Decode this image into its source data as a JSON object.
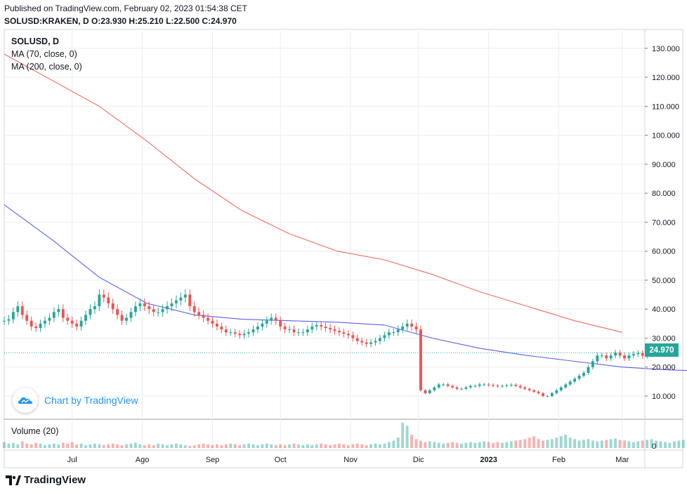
{
  "header": {
    "published": "Published on TradingView.com, February 02, 2023 01:54:38 CET",
    "ohlc": "SOLUSD:KRAKEN, D  O:23.930  H:25.210  L:22.500  C:24.970"
  },
  "legend": {
    "symbol": "SOLUSD, D",
    "ma1": "MA (70, close, 0)",
    "ma2": "MA (200, close, 0)",
    "volume": "Volume (20)"
  },
  "watermark": "Chart by TradingView",
  "footer_brand": "TradingView",
  "last_price_label": "24.970",
  "colors": {
    "up": "#26a69a",
    "down": "#ef5350",
    "ma70": "#5b5fe6",
    "ma200": "#f06b5f",
    "last_price": "#26a69a",
    "grid": "#e9edf2"
  },
  "chart_data": {
    "type": "candlestick",
    "y_ticks": [
      "130.000",
      "120.000",
      "110.000",
      "100.000",
      "90.000",
      "80.000",
      "70.000",
      "60.000",
      "50.000",
      "40.000",
      "30.000",
      "20.000",
      "10.000"
    ],
    "y_tick_values": [
      130,
      120,
      110,
      100,
      90,
      80,
      70,
      60,
      50,
      40,
      30,
      20,
      10
    ],
    "ylim": [
      2,
      136
    ],
    "volume_tick": "0",
    "x_ticks": [
      "Jul",
      "Ago",
      "Sep",
      "Oct",
      "Nov",
      "Dic",
      "2023",
      "Feb",
      "Mar"
    ],
    "x_tick_dates": [
      "2022-07-01",
      "2022-08-01",
      "2022-09-01",
      "2022-10-01",
      "2022-11-01",
      "2022-12-01",
      "2023-01-01",
      "2023-02-01",
      "2023-03-01"
    ],
    "x_range": [
      "2022-06-01",
      "2023-03-11"
    ],
    "last_price": 24.97,
    "close_series": {
      "start_date": "2022-06-01",
      "values": [
        36,
        36.5,
        39,
        41,
        38,
        36,
        34,
        33.5,
        35,
        36,
        37,
        39,
        40,
        37,
        36,
        35,
        34,
        36,
        38,
        40,
        41,
        45,
        44,
        42,
        40,
        38,
        36,
        37,
        39,
        41,
        42,
        41,
        40,
        39,
        39,
        40,
        41,
        42,
        43,
        44,
        45,
        41,
        39,
        38,
        37,
        36,
        35,
        34,
        33,
        32,
        32,
        31.5,
        31,
        31.5,
        32,
        33,
        34,
        35,
        36,
        37,
        36,
        34,
        33,
        33,
        32,
        32,
        32,
        33,
        34,
        34.5,
        34,
        33.5,
        33,
        32.5,
        32,
        31.5,
        31,
        30,
        29,
        28.5,
        28,
        28.5,
        29,
        30,
        31,
        32,
        32,
        33,
        34,
        35,
        34,
        33,
        12,
        11,
        12,
        13,
        14,
        14,
        13.5,
        13,
        12.5,
        12.5,
        13,
        13.5,
        13.5,
        14,
        14,
        13.8,
        13.6,
        13.4,
        13.5,
        13.7,
        13.9,
        13.5,
        13,
        12.5,
        12,
        11.5,
        11,
        10,
        10,
        11,
        12,
        13,
        14,
        15,
        16,
        17,
        18,
        20,
        22,
        24,
        24,
        23,
        24,
        25,
        24,
        23,
        24,
        24.5,
        24.8,
        23.9,
        24.97
      ]
    },
    "ma200": {
      "start_date": "2022-06-01",
      "values": [
        128,
        119,
        110,
        98,
        85,
        74,
        66,
        60,
        57,
        52,
        46,
        41,
        36,
        32
      ]
    },
    "ma70": {
      "start_date": "2022-06-01",
      "values": [
        76,
        64,
        51,
        42,
        38,
        36.5,
        36,
        35.5,
        34.5,
        30,
        26.5,
        24,
        22,
        20,
        19,
        18.5,
        18.2
      ]
    },
    "volume_series": {
      "start_date": "2022-06-01",
      "values": [
        8,
        6,
        7,
        5,
        9,
        6,
        5,
        7,
        6,
        4,
        5,
        6,
        5,
        7,
        6,
        8,
        5,
        6,
        4,
        5,
        6,
        5,
        4,
        5,
        6,
        5,
        4,
        5,
        6,
        7,
        5,
        4,
        5,
        4,
        6,
        5,
        4,
        5,
        6,
        5,
        4,
        3,
        4,
        5,
        6,
        5,
        4,
        5,
        4,
        5,
        6,
        5,
        4,
        5,
        6,
        5,
        4,
        5,
        6,
        5,
        4,
        5,
        4,
        5,
        6,
        5,
        4,
        5,
        4,
        5,
        6,
        5,
        4,
        5,
        6,
        5,
        4,
        5,
        6,
        5,
        4,
        5,
        6,
        5,
        6,
        8,
        10,
        14,
        34,
        30,
        18,
        12,
        10,
        8,
        9,
        8,
        7,
        6,
        7,
        8,
        7,
        6,
        7,
        8,
        7,
        8,
        9,
        8,
        7,
        8,
        7,
        8,
        9,
        10,
        11,
        12,
        14,
        16,
        12,
        10,
        11,
        12,
        14,
        16,
        18,
        14,
        12,
        10,
        11,
        12,
        10,
        9,
        10,
        11,
        12,
        13,
        11,
        10,
        9,
        8,
        9,
        10,
        11,
        12,
        10,
        9,
        8,
        7,
        9,
        10,
        11
      ]
    }
  }
}
